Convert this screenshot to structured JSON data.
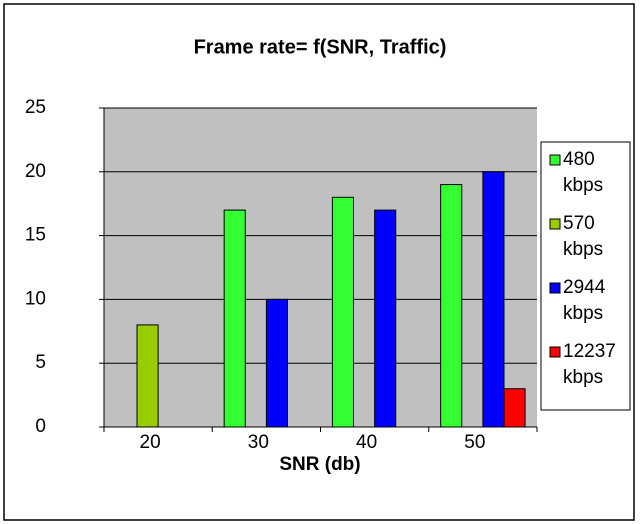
{
  "chart_data": {
    "type": "bar",
    "title": "Frame rate= f(SNR, Traffic)",
    "x_label": "SNR (db)",
    "categories": [
      "20",
      "30",
      "40",
      "50"
    ],
    "series": [
      {
        "name": "480 kbps",
        "color": "#33ff33",
        "values": [
          null,
          17,
          18,
          19
        ]
      },
      {
        "name": "570 kbps",
        "color": "#99cc00",
        "values": [
          8,
          null,
          null,
          null
        ]
      },
      {
        "name": "2944 kbps",
        "color": "#0000ff",
        "values": [
          null,
          10,
          17,
          20
        ]
      },
      {
        "name": "12237 kbps",
        "color": "#ff0000",
        "values": [
          null,
          null,
          null,
          3
        ]
      }
    ],
    "ylim": [
      0,
      25
    ],
    "yticks": [
      0,
      5,
      10,
      15,
      20,
      25
    ],
    "grid": true,
    "legend": "right"
  }
}
